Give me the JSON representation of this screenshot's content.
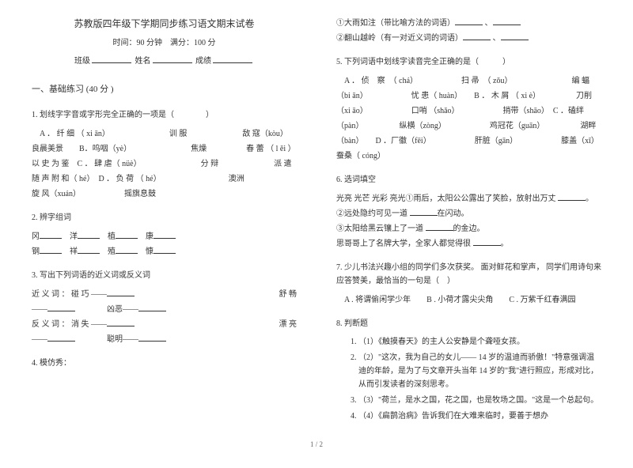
{
  "header": {
    "title": "苏教版四年级下学期同步练习语文期末试卷",
    "time_label": "时间：",
    "time_value": "90 分钟",
    "score_label": "满分：",
    "score_value": "100 分",
    "class_label": "班级",
    "name_label": "姓名",
    "grade_label": "成绩"
  },
  "section1": {
    "head": "一、基础练习 (40 分 )"
  },
  "q1": {
    "prompt": "1. 划线字字音或字形完全正确的一项是（　　　　）",
    "body": "　A ． 纤 细 （ xi ān）　　　　　　　　训 服　　　　　　　敌 寇（kòu）　　　　　　良晨美景　　B．呜咽（yè）　　　　　　　　焦燥　　　　　春 蕾 （ l ěi ）　　　　　　以 史 为 鉴　C ． 肆 虐（ nüè）　　　　　　　　分 辩　　　　　　　派 遣　　　　　随 声 附 和（ hé）　D ． 负 荷 （ hé）　　　　　　　　　澳洲　　　　　　　旋 风（xuán）　　　　　　摇旗息鼓"
  },
  "q2": {
    "prompt": "2. 辨字组词",
    "line1_parts": [
      "冈",
      "洋",
      "植",
      "康"
    ],
    "line2_parts": [
      "钢",
      "祥",
      "殖",
      "慷"
    ]
  },
  "q3": {
    "prompt": "3. 写出下列词语的近义词或反义词",
    "line1": "近 义 词 ： 碰 巧 ——",
    "line1b": "舒 畅",
    "line2a": "——",
    "line2b": "凶恶——",
    "line3": "反 义 词 ： 消 失 ——",
    "line3b": "漂 亮",
    "line4a": "——",
    "line4b": "聪明——"
  },
  "q4": {
    "prompt": "4. 模仿秀："
  },
  "r1": {
    "line1": "①大雨如注（带比喻方法的词语）",
    "line2": "②翻山越岭（有一对近义词的词语）"
  },
  "q5": {
    "prompt": "5. 下列词语中划线字读音完全正确的是（　　　）",
    "body": "　A ． 侦　察　（ chá）　　　　　　扫 帚　（ zǒu）　　　　　　　　编 蝠（bi ān）　　　　　　忧 患（ huàn）　　B ． 木 屑 （ xi è）　　　　　刀削（xi āo）　　　　　　口哨 （shǎo）　　　　　　捎带（shāo）　C ．磕绊 （pàn）　　　　　纵横（zòng）　　　　　　鸡冠花（guān）　　　　　湖畔 （bàn）　　D ．厂徽（fēi）　　　　　　肝脏（gān）　　　　　　膝盖（xī）　　　　　　　　　蚕桑（ cóng）"
  },
  "q6": {
    "prompt": "6. 选词填空",
    "line1": "光亮 光芒 光彩 亮光①雨后，太阳公公露出了笑脸，放射出万丈",
    "line2": "②远处隐约可见一道",
    "line2b": "在闪动。",
    "line3": "③太阳给黑云镶上了一道",
    "line3b": "的金边。",
    "line4": "思哥哥上了名牌大学，全家人都觉得很"
  },
  "q7": {
    "prompt": "7. 少儿书法兴趣小组的同学们多次获奖。 面对鲜花和掌声， 同学们用诗句来应答赞美，最恰当的一句是（　）",
    "opts": "　A . 将谓偷闲学少年　　B . 小荷才露尖尖角　　C . 万紫千红春满园"
  },
  "q8": {
    "prompt": "8. 判断题",
    "items": [
      "（1）《触摸春天》的主人公安静是个聋哑女孩。",
      "（2）\"这次，我为自己的女儿—— 14 岁的温迪而骄傲！\"特意强调温迪的年龄，是为了与文章开头当年 14 岁的\"我\"进行照应，形成对比，从而引发读者的深刻思考。",
      "（3）\"荷兰，是水之国，花之国，也是牧场之国。\"这是一个总起句。",
      "（4）《扁鹊治病》告诉我们在大难来临时，要善于想办"
    ]
  },
  "footer": "1 / 2"
}
